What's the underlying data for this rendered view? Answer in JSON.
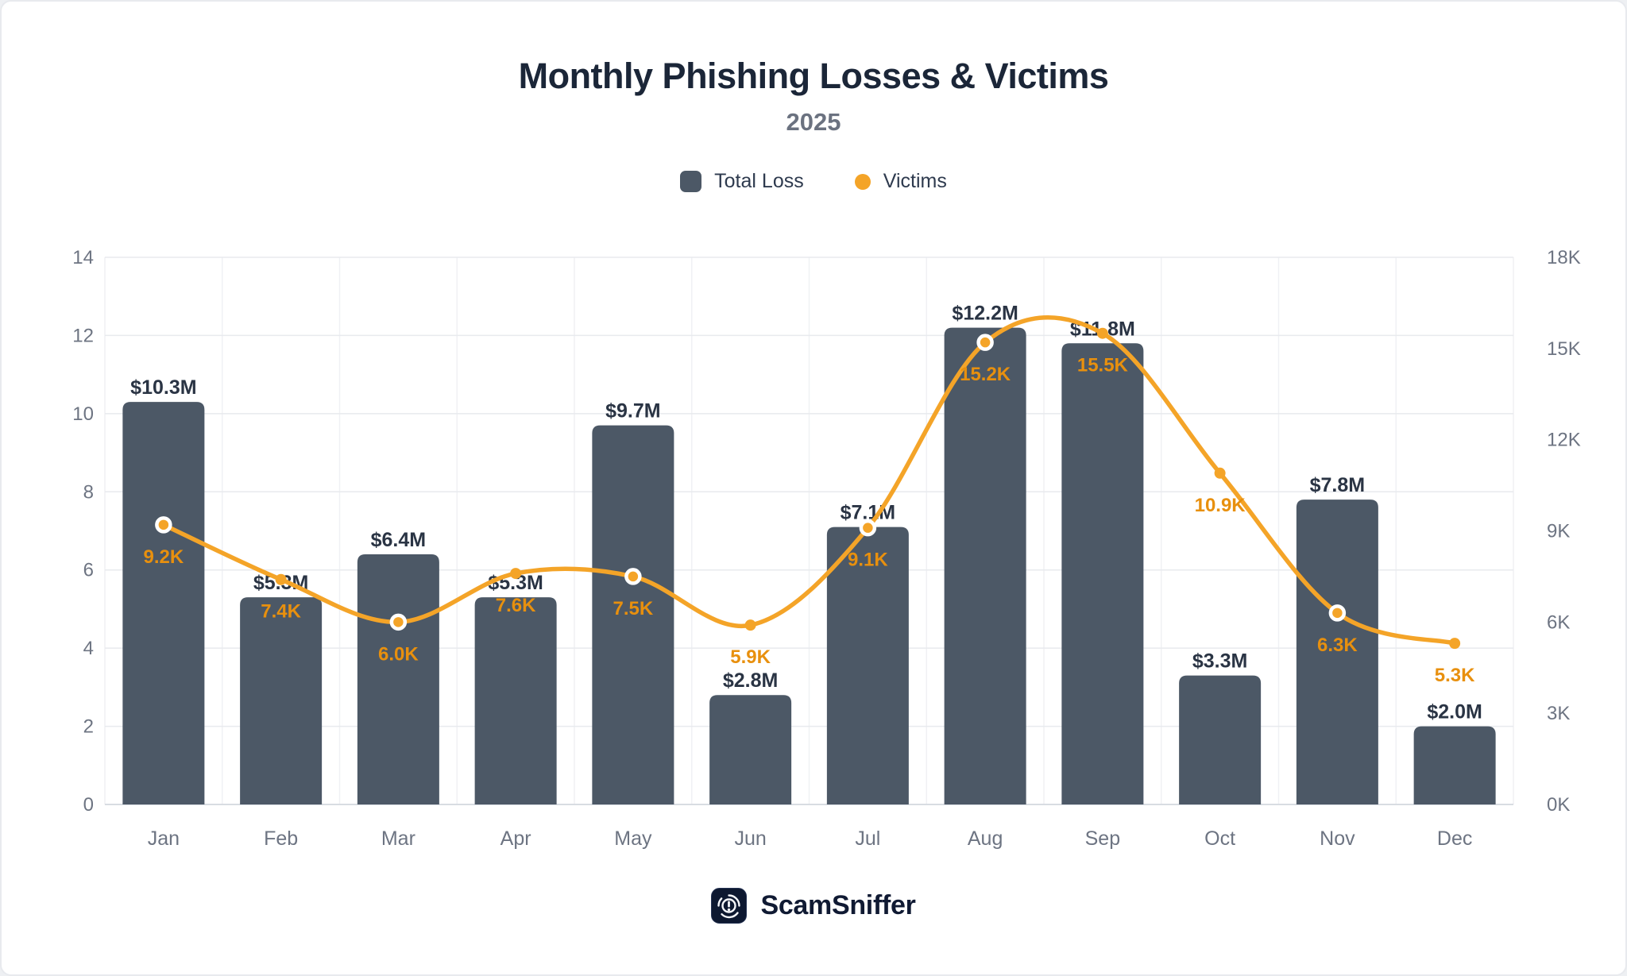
{
  "header": {
    "title": "Monthly Phishing Losses & Victims",
    "subtitle": "2025"
  },
  "legend": [
    {
      "label": "Total Loss",
      "marker": "square",
      "color": "#4c5866"
    },
    {
      "label": "Victims",
      "marker": "circle",
      "color": "#f4a428"
    }
  ],
  "footer": {
    "brand": "ScamSniffer"
  },
  "colors": {
    "bar": "#4c5866",
    "line": "#f4a428",
    "victim_label": "#e8900e",
    "loss_label": "#2a3444",
    "axis_text": "#6d7482",
    "grid_h": "#e8eaee",
    "grid_v": "#f0f1f4",
    "baseline": "#d8dce2",
    "title": "#1b2638",
    "logo_bg": "#0d1830"
  },
  "chart_data": {
    "type": "bar",
    "title": "Monthly Phishing Losses & Victims",
    "subtitle": "2025",
    "categories": [
      "Jan",
      "Feb",
      "Mar",
      "Apr",
      "May",
      "Jun",
      "Jul",
      "Aug",
      "Sep",
      "Oct",
      "Nov",
      "Dec"
    ],
    "series": [
      {
        "name": "Total Loss",
        "kind": "bar",
        "axis": "left",
        "unit": "USD millions",
        "values": [
          10.3,
          5.3,
          6.4,
          5.3,
          9.7,
          2.8,
          7.1,
          12.2,
          11.8,
          3.3,
          7.8,
          2.0
        ],
        "labels": [
          "$10.3M",
          "$5.3M",
          "$6.4M",
          "$5.3M",
          "$9.7M",
          "$2.8M",
          "$7.1M",
          "$12.2M",
          "$11.8M",
          "$3.3M",
          "$7.8M",
          "$2.0M"
        ]
      },
      {
        "name": "Victims",
        "kind": "line",
        "axis": "right",
        "unit": "thousands",
        "values": [
          9.2,
          7.4,
          6.0,
          7.6,
          7.5,
          5.9,
          9.1,
          15.2,
          15.5,
          10.9,
          6.3,
          5.3
        ],
        "labels": [
          "9.2K",
          "7.4K",
          "6.0K",
          "7.6K",
          "7.5K",
          "5.9K",
          "9.1K",
          "15.2K",
          "15.5K",
          "10.9K",
          "6.3K",
          "5.3K"
        ],
        "ringed_markers": [
          true,
          false,
          true,
          false,
          true,
          false,
          true,
          true,
          false,
          false,
          true,
          false
        ]
      }
    ],
    "left_axis": {
      "min": 0,
      "max": 14,
      "tick_step": 2,
      "tick_labels": [
        "0",
        "2",
        "4",
        "6",
        "8",
        "10",
        "12",
        "14"
      ]
    },
    "right_axis": {
      "min": 0,
      "max": 18,
      "tick_step": 3,
      "tick_labels": [
        "0K",
        "3K",
        "6K",
        "9K",
        "12K",
        "15K",
        "18K"
      ]
    },
    "grid": true,
    "legend_position": "top"
  }
}
